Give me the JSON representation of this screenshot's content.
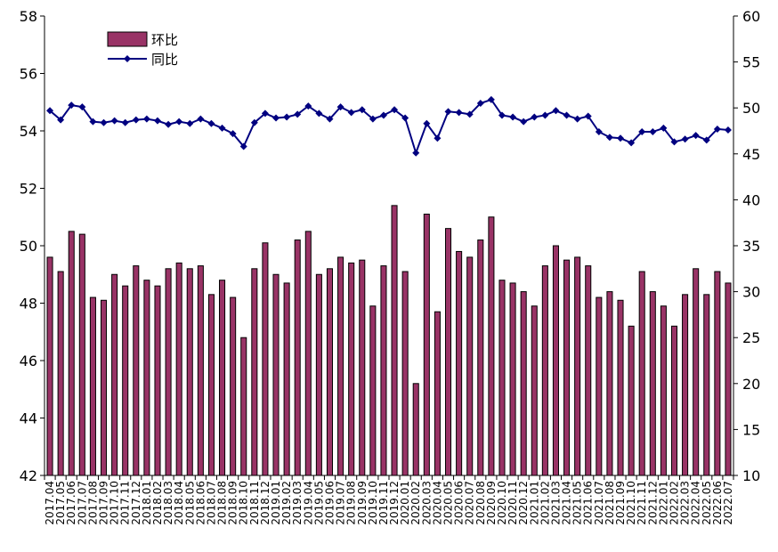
{
  "chart_data": {
    "type": "bar+line",
    "title": "",
    "xlabel": "",
    "ylabel_left": "",
    "ylabel_right": "",
    "categories": [
      "2017.04",
      "2017.05",
      "2017.06",
      "2017.07",
      "2017.08",
      "2017.09",
      "2017.10",
      "2017.11",
      "2017.12",
      "2018.01",
      "2018.02",
      "2018.03",
      "2018.04",
      "2018.05",
      "2018.06",
      "2018.07",
      "2018.08",
      "2018.09",
      "2018.10",
      "2018.11",
      "2018.12",
      "2019.01",
      "2019.02",
      "2019.03",
      "2019.04",
      "2019.05",
      "2019.06",
      "2019.07",
      "2019.08",
      "2019.09",
      "2019.10",
      "2019.11",
      "2019.12",
      "2020.01",
      "2020.02",
      "2020.03",
      "2020.04",
      "2020.05",
      "2020.06",
      "2020.07",
      "2020.08",
      "2020.09",
      "2020.10",
      "2020.11",
      "2020.12",
      "2021.01",
      "2021.02",
      "2021.03",
      "2021.04",
      "2021.05",
      "2021.06",
      "2021.07",
      "2021.08",
      "2021.09",
      "2021.10",
      "2021.11",
      "2021.12",
      "2022.01",
      "2022.02",
      "2022.03",
      "2022.04",
      "2022.05",
      "2022.06",
      "2022.07"
    ],
    "x_tick_labels": [
      "2017.04",
      "2017.05",
      "2017.06",
      "2017.07",
      "2017.08",
      "2017.09",
      "2017.10",
      "2017.11",
      "2017.12",
      "2018.01",
      "2018.02",
      "2018.03",
      "2018.04",
      "2018.05",
      "2018.06",
      "2018.07",
      "2018.08",
      "2018.09",
      "2018.10",
      "2018.11",
      "2018.12",
      "2019.01",
      "2019.02",
      "2019.03",
      "2019.04",
      "2019.05",
      "2019.06",
      "2019.07",
      "2019.08",
      "2019.09",
      "2019.10",
      "2019.11",
      "2019.12",
      "2020.01",
      "2020.02",
      "2020.03",
      "2020.04",
      "2020.05",
      "2020.06",
      "2020.07",
      "2020.08",
      "2020.09",
      "2020.10",
      "2020.11",
      "2020.12",
      "2021.01",
      "2021.02",
      "2021.03",
      "2021.04",
      "2021.05",
      "2021.06",
      "2021.07",
      "2021.08",
      "2021.09",
      "2021.10",
      "2021.11",
      "2021.12",
      "2022.01",
      "2022.02",
      "2022.03",
      "2022.04",
      "2022.05",
      "2022.06",
      "2022.07"
    ],
    "y_left": {
      "min": 42,
      "max": 58,
      "ticks": [
        42,
        44,
        46,
        48,
        50,
        52,
        54,
        56,
        58
      ]
    },
    "y_right": {
      "min": 10,
      "max": 60,
      "ticks": [
        10,
        15,
        20,
        25,
        30,
        35,
        40,
        45,
        50,
        55,
        60
      ]
    },
    "grid": false,
    "legend_position": "top-left",
    "series": [
      {
        "name": "环比",
        "type": "bar",
        "axis": "left",
        "color": "#993366",
        "values": [
          49.6,
          49.1,
          50.5,
          50.4,
          48.2,
          48.1,
          49.0,
          48.6,
          49.3,
          48.8,
          48.6,
          49.2,
          49.4,
          49.2,
          49.3,
          48.3,
          48.8,
          48.2,
          46.8,
          49.2,
          50.1,
          49.0,
          48.7,
          50.2,
          50.5,
          49.0,
          49.2,
          49.6,
          49.4,
          49.5,
          47.9,
          49.3,
          51.4,
          49.1,
          45.2,
          51.1,
          47.7,
          50.6,
          49.8,
          49.6,
          50.2,
          51.0,
          48.8,
          48.7,
          48.4,
          47.9,
          49.3,
          50.0,
          49.5,
          49.6,
          49.3,
          48.2,
          48.4,
          48.1,
          47.2,
          49.1,
          48.4,
          47.9,
          47.2,
          48.3,
          49.2,
          48.3,
          49.1,
          48.7
        ]
      },
      {
        "name": "同比",
        "type": "line",
        "axis": "right",
        "color": "#000080",
        "values": [
          49.7,
          48.7,
          50.3,
          50.1,
          48.5,
          48.4,
          48.6,
          48.4,
          48.7,
          48.8,
          48.6,
          48.2,
          48.5,
          48.3,
          48.8,
          48.3,
          47.8,
          47.2,
          45.8,
          48.4,
          49.4,
          48.9,
          49.0,
          49.3,
          50.2,
          49.4,
          48.8,
          50.1,
          49.5,
          49.8,
          48.8,
          49.2,
          49.8,
          48.9,
          45.1,
          48.3,
          46.7,
          49.6,
          49.5,
          49.3,
          50.5,
          50.9,
          49.2,
          49.0,
          48.5,
          49.0,
          49.2,
          49.7,
          49.2,
          48.8,
          49.1,
          47.4,
          46.8,
          46.7,
          46.2,
          47.4,
          47.4,
          47.8,
          46.3,
          46.6,
          47.0,
          46.5,
          47.7,
          47.6
        ]
      }
    ]
  }
}
